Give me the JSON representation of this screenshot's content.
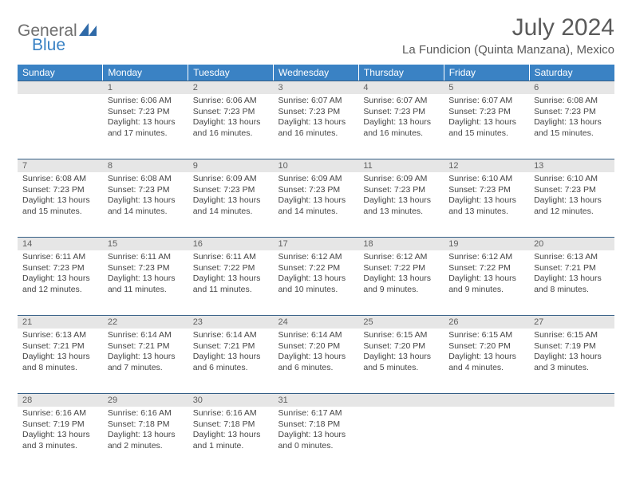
{
  "logo": {
    "word1": "General",
    "word2": "Blue",
    "icon_color": "#2f6aa8"
  },
  "title": "July 2024",
  "location": "La Fundicion (Quinta Manzana), Mexico",
  "colors": {
    "header_bg": "#3a82c4",
    "header_fg": "#ffffff",
    "daynum_bg": "#e6e6e6",
    "daynum_border": "#355f86",
    "text": "#454545"
  },
  "day_headers": [
    "Sunday",
    "Monday",
    "Tuesday",
    "Wednesday",
    "Thursday",
    "Friday",
    "Saturday"
  ],
  "weeks": [
    [
      null,
      {
        "n": "1",
        "rise": "6:06 AM",
        "set": "7:23 PM",
        "dl": "13 hours and 17 minutes."
      },
      {
        "n": "2",
        "rise": "6:06 AM",
        "set": "7:23 PM",
        "dl": "13 hours and 16 minutes."
      },
      {
        "n": "3",
        "rise": "6:07 AM",
        "set": "7:23 PM",
        "dl": "13 hours and 16 minutes."
      },
      {
        "n": "4",
        "rise": "6:07 AM",
        "set": "7:23 PM",
        "dl": "13 hours and 16 minutes."
      },
      {
        "n": "5",
        "rise": "6:07 AM",
        "set": "7:23 PM",
        "dl": "13 hours and 15 minutes."
      },
      {
        "n": "6",
        "rise": "6:08 AM",
        "set": "7:23 PM",
        "dl": "13 hours and 15 minutes."
      }
    ],
    [
      {
        "n": "7",
        "rise": "6:08 AM",
        "set": "7:23 PM",
        "dl": "13 hours and 15 minutes."
      },
      {
        "n": "8",
        "rise": "6:08 AM",
        "set": "7:23 PM",
        "dl": "13 hours and 14 minutes."
      },
      {
        "n": "9",
        "rise": "6:09 AM",
        "set": "7:23 PM",
        "dl": "13 hours and 14 minutes."
      },
      {
        "n": "10",
        "rise": "6:09 AM",
        "set": "7:23 PM",
        "dl": "13 hours and 14 minutes."
      },
      {
        "n": "11",
        "rise": "6:09 AM",
        "set": "7:23 PM",
        "dl": "13 hours and 13 minutes."
      },
      {
        "n": "12",
        "rise": "6:10 AM",
        "set": "7:23 PM",
        "dl": "13 hours and 13 minutes."
      },
      {
        "n": "13",
        "rise": "6:10 AM",
        "set": "7:23 PM",
        "dl": "13 hours and 12 minutes."
      }
    ],
    [
      {
        "n": "14",
        "rise": "6:11 AM",
        "set": "7:23 PM",
        "dl": "13 hours and 12 minutes."
      },
      {
        "n": "15",
        "rise": "6:11 AM",
        "set": "7:23 PM",
        "dl": "13 hours and 11 minutes."
      },
      {
        "n": "16",
        "rise": "6:11 AM",
        "set": "7:22 PM",
        "dl": "13 hours and 11 minutes."
      },
      {
        "n": "17",
        "rise": "6:12 AM",
        "set": "7:22 PM",
        "dl": "13 hours and 10 minutes."
      },
      {
        "n": "18",
        "rise": "6:12 AM",
        "set": "7:22 PM",
        "dl": "13 hours and 9 minutes."
      },
      {
        "n": "19",
        "rise": "6:12 AM",
        "set": "7:22 PM",
        "dl": "13 hours and 9 minutes."
      },
      {
        "n": "20",
        "rise": "6:13 AM",
        "set": "7:21 PM",
        "dl": "13 hours and 8 minutes."
      }
    ],
    [
      {
        "n": "21",
        "rise": "6:13 AM",
        "set": "7:21 PM",
        "dl": "13 hours and 8 minutes."
      },
      {
        "n": "22",
        "rise": "6:14 AM",
        "set": "7:21 PM",
        "dl": "13 hours and 7 minutes."
      },
      {
        "n": "23",
        "rise": "6:14 AM",
        "set": "7:21 PM",
        "dl": "13 hours and 6 minutes."
      },
      {
        "n": "24",
        "rise": "6:14 AM",
        "set": "7:20 PM",
        "dl": "13 hours and 6 minutes."
      },
      {
        "n": "25",
        "rise": "6:15 AM",
        "set": "7:20 PM",
        "dl": "13 hours and 5 minutes."
      },
      {
        "n": "26",
        "rise": "6:15 AM",
        "set": "7:20 PM",
        "dl": "13 hours and 4 minutes."
      },
      {
        "n": "27",
        "rise": "6:15 AM",
        "set": "7:19 PM",
        "dl": "13 hours and 3 minutes."
      }
    ],
    [
      {
        "n": "28",
        "rise": "6:16 AM",
        "set": "7:19 PM",
        "dl": "13 hours and 3 minutes."
      },
      {
        "n": "29",
        "rise": "6:16 AM",
        "set": "7:18 PM",
        "dl": "13 hours and 2 minutes."
      },
      {
        "n": "30",
        "rise": "6:16 AM",
        "set": "7:18 PM",
        "dl": "13 hours and 1 minute."
      },
      {
        "n": "31",
        "rise": "6:17 AM",
        "set": "7:18 PM",
        "dl": "13 hours and 0 minutes."
      },
      null,
      null,
      null
    ]
  ],
  "labels": {
    "sunrise": "Sunrise:",
    "sunset": "Sunset:",
    "daylight": "Daylight:"
  }
}
